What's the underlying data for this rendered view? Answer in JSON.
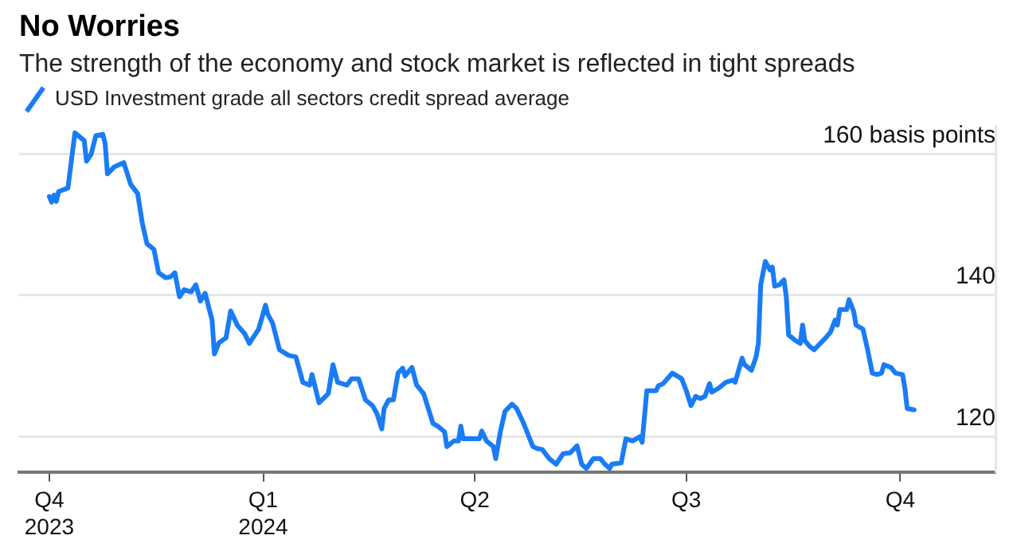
{
  "chart_data": {
    "type": "line",
    "title": "No Worries",
    "subtitle": "The strength of the economy and stock market is reflected in tight spreads",
    "x": [
      "2023-10-01",
      "2023-10-02",
      "2023-10-03",
      "2023-10-04",
      "2023-10-05",
      "2023-10-09",
      "2023-10-12",
      "2023-10-16",
      "2023-10-17",
      "2023-10-19",
      "2023-10-21",
      "2023-10-24",
      "2023-10-25",
      "2023-10-26",
      "2023-10-29",
      "2023-11-02",
      "2023-11-05",
      "2023-11-08",
      "2023-11-10",
      "2023-11-12",
      "2023-11-15",
      "2023-11-17",
      "2023-11-20",
      "2023-11-22",
      "2023-11-24",
      "2023-11-26",
      "2023-11-28",
      "2023-12-01",
      "2023-12-03",
      "2023-12-05",
      "2023-12-07",
      "2023-12-10",
      "2023-12-11",
      "2023-12-13",
      "2023-12-16",
      "2023-12-18",
      "2023-12-21",
      "2023-12-24",
      "2023-12-26",
      "2023-12-30",
      "2024-01-02",
      "2024-01-03",
      "2024-01-05",
      "2024-01-08",
      "2024-01-12",
      "2024-01-15",
      "2024-01-17",
      "2024-01-18",
      "2024-01-21",
      "2024-01-22",
      "2024-01-25",
      "2024-01-29",
      "2024-01-31",
      "2024-02-02",
      "2024-02-06",
      "2024-02-08",
      "2024-02-11",
      "2024-02-14",
      "2024-02-17",
      "2024-02-19",
      "2024-02-21",
      "2024-02-22",
      "2024-02-24",
      "2024-02-26",
      "2024-02-28",
      "2024-03-01",
      "2024-03-02",
      "2024-03-05",
      "2024-03-07",
      "2024-03-10",
      "2024-03-14",
      "2024-03-16",
      "2024-03-19",
      "2024-03-20",
      "2024-03-23",
      "2024-03-25",
      "2024-03-26",
      "2024-03-27",
      "2024-03-31",
      "2024-04-03",
      "2024-04-04",
      "2024-04-06",
      "2024-04-09",
      "2024-04-10",
      "2024-04-12",
      "2024-04-14",
      "2024-04-17",
      "2024-04-19",
      "2024-04-22",
      "2024-04-26",
      "2024-04-28",
      "2024-04-30",
      "2024-05-03",
      "2024-05-06",
      "2024-05-09",
      "2024-05-12",
      "2024-05-15",
      "2024-05-17",
      "2024-05-19",
      "2024-05-22",
      "2024-05-25",
      "2024-05-27",
      "2024-05-29",
      "2024-05-30",
      "2024-06-03",
      "2024-06-05",
      "2024-06-08",
      "2024-06-11",
      "2024-06-12",
      "2024-06-14",
      "2024-06-18",
      "2024-06-19",
      "2024-06-21",
      "2024-06-25",
      "2024-06-27",
      "2024-06-29",
      "2024-07-01",
      "2024-07-03",
      "2024-07-05",
      "2024-07-07",
      "2024-07-09",
      "2024-07-11",
      "2024-07-12",
      "2024-07-15",
      "2024-07-18",
      "2024-07-21",
      "2024-07-22",
      "2024-07-25",
      "2024-07-26",
      "2024-07-29",
      "2024-07-31",
      "2024-08-01",
      "2024-08-02",
      "2024-08-03",
      "2024-08-04",
      "2024-08-06",
      "2024-08-07",
      "2024-08-08",
      "2024-08-10",
      "2024-08-12",
      "2024-08-13",
      "2024-08-14",
      "2024-08-17",
      "2024-08-19",
      "2024-08-20",
      "2024-08-21",
      "2024-08-23",
      "2024-08-25",
      "2024-08-27",
      "2024-08-30",
      "2024-09-01",
      "2024-09-03",
      "2024-09-04",
      "2024-09-05",
      "2024-09-06",
      "2024-09-08",
      "2024-09-09",
      "2024-09-11",
      "2024-09-12",
      "2024-09-15",
      "2024-09-17",
      "2024-09-19",
      "2024-09-21",
      "2024-09-23",
      "2024-09-24",
      "2024-09-27",
      "2024-09-29",
      "2024-10-02",
      "2024-10-03",
      "2024-10-04",
      "2024-10-07"
    ],
    "series": [
      {
        "name": "USD Investment grade all sectors credit spread average",
        "color": "#1a7cf5",
        "values": [
          154.0,
          153.2,
          154.2,
          153.3,
          154.7,
          155.2,
          163.0,
          161.9,
          159.0,
          160.0,
          162.6,
          162.8,
          161.5,
          157.2,
          158.2,
          158.8,
          155.7,
          154.4,
          150.2,
          147.3,
          146.5,
          143.2,
          142.5,
          142.6,
          143.2,
          139.8,
          140.8,
          140.5,
          141.5,
          139.2,
          140.3,
          136.5,
          131.7,
          133.3,
          134.0,
          137.8,
          135.7,
          134.6,
          133.2,
          135.2,
          138.6,
          137.3,
          136.1,
          132.3,
          131.5,
          131.3,
          129.0,
          127.7,
          127.3,
          128.8,
          124.8,
          126.1,
          130.2,
          127.7,
          127.3,
          128.2,
          128.2,
          125.2,
          124.4,
          123.2,
          121.1,
          124.0,
          125.2,
          125.2,
          129.0,
          129.7,
          128.6,
          129.8,
          127.3,
          126.1,
          121.9,
          121.5,
          120.7,
          118.6,
          119.4,
          119.4,
          121.5,
          119.7,
          119.7,
          119.7,
          120.8,
          119.4,
          118.6,
          116.9,
          120.7,
          123.6,
          124.6,
          124.0,
          121.9,
          118.6,
          118.3,
          118.2,
          116.9,
          116.1,
          117.6,
          117.7,
          118.7,
          116.1,
          115.5,
          116.9,
          116.9,
          116.1,
          115.5,
          116.1,
          116.3,
          119.7,
          119.4,
          120.0,
          119.2,
          126.5,
          126.5,
          127.2,
          127.5,
          129.0,
          128.6,
          128.2,
          126.5,
          124.4,
          125.7,
          125.4,
          125.7,
          127.5,
          126.3,
          126.9,
          127.7,
          128.0,
          127.7,
          131.1,
          130.2,
          129.4,
          131.3,
          133.2,
          141.5,
          143.2,
          144.8,
          143.6,
          144.0,
          141.3,
          141.5,
          142.2,
          139.8,
          134.4,
          133.6,
          133.2,
          135.8,
          133.6,
          132.8,
          132.3,
          133.0,
          134.0,
          134.8,
          136.5,
          135.8,
          138.0,
          138.0,
          138.0,
          139.4,
          137.7,
          135.8,
          135.2,
          132.3,
          129.0,
          128.8,
          129.0,
          130.2,
          129.8,
          129.0,
          128.8,
          126.9,
          124.0,
          123.8
        ]
      }
    ],
    "xlim": [
      "2023-09-18",
      "2024-11-11"
    ],
    "xticks": [
      {
        "value": "2023-10-01",
        "label": "Q4\n2023"
      },
      {
        "value": "2024-01-01",
        "label": "Q1\n2024"
      },
      {
        "value": "2024-04-01",
        "label": "Q2"
      },
      {
        "value": "2024-07-01",
        "label": "Q3"
      },
      {
        "value": "2024-10-01",
        "label": "Q4"
      }
    ],
    "yticks": [
      120,
      140,
      {
        "value": 160,
        "label": "160 basis points"
      }
    ],
    "ylim": [
      115,
      164
    ],
    "grid": "y",
    "legend": "top left",
    "marker": "none",
    "line_style": "solid"
  }
}
